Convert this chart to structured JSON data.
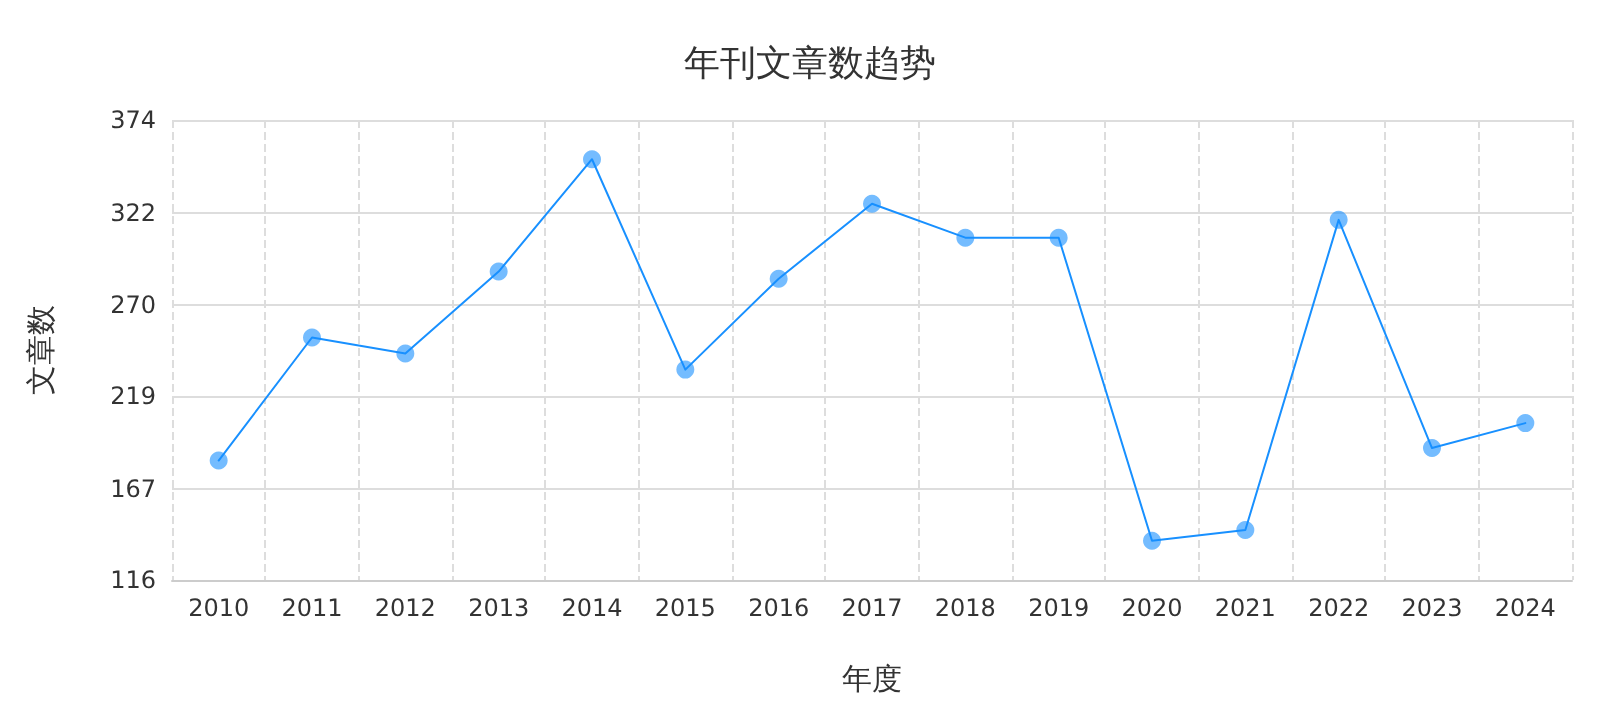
{
  "chart_data": {
    "type": "line",
    "title": "年刊文章数趋势",
    "xlabel": "年度",
    "ylabel": "文章数",
    "categories": [
      "2010",
      "2011",
      "2012",
      "2013",
      "2014",
      "2015",
      "2016",
      "2017",
      "2018",
      "2019",
      "2020",
      "2021",
      "2022",
      "2023",
      "2024"
    ],
    "series": [
      {
        "color": "#1890ff",
        "values": [
          183,
          252,
          243,
          289,
          352,
          234,
          285,
          327,
          308,
          308,
          138,
          144,
          318,
          190,
          204
        ]
      }
    ],
    "ylim": [
      116,
      374
    ],
    "yticks": [
      116,
      167,
      219,
      270,
      322,
      374
    ],
    "grid": true,
    "marker": "circle",
    "line_style": "solid"
  }
}
